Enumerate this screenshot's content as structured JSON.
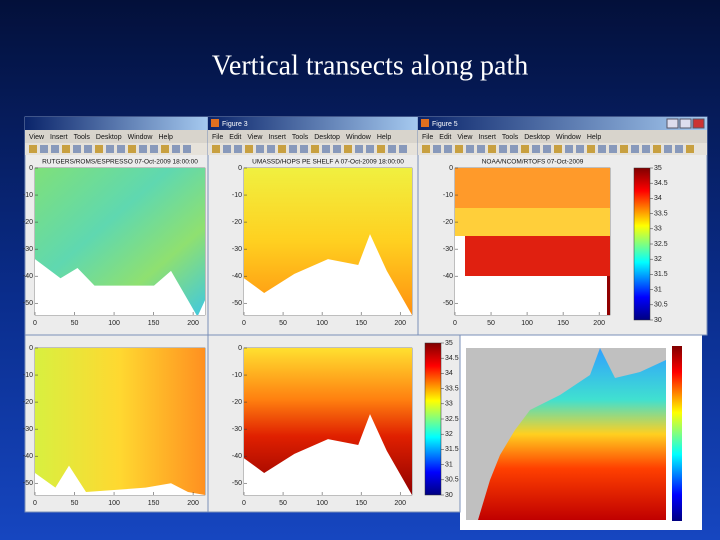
{
  "title": "Vertical transects along path",
  "windows": [
    {
      "menu": [
        "View",
        "Insert",
        "Tools",
        "Desktop",
        "Window",
        "Help"
      ]
    },
    {
      "caption": "Figure 3",
      "menu": [
        "File",
        "Edit",
        "View",
        "Insert",
        "Tools",
        "Desktop",
        "Window",
        "Help"
      ]
    },
    {
      "caption": "Figure 5",
      "menu": [
        "File",
        "Edit",
        "View",
        "Insert",
        "Tools",
        "Desktop",
        "Window",
        "Help"
      ]
    }
  ],
  "panels": [
    {
      "title": "RUTGERS/ROMS/ESPRESSO 07-Oct-2009 18:00:00",
      "xticks": [
        0,
        50,
        100,
        150,
        200
      ],
      "yticks": [
        0,
        -10,
        -20,
        -30,
        -40,
        -50
      ]
    },
    {
      "title": "UMASSD/HOPS PE SHELF A 07-Oct-2009 18:00:00",
      "xticks": [
        0,
        50,
        100,
        150,
        200
      ],
      "yticks": [
        0,
        -10,
        -20,
        -30,
        -40,
        -50
      ]
    },
    {
      "title": "NOAA/NCOM/RTOFS 07-Oct-2009",
      "xticks": [
        0,
        50,
        100,
        150,
        200
      ],
      "yticks": [
        0,
        -10,
        -20,
        -30,
        -40,
        -50
      ],
      "colorbar": [
        35,
        34.5,
        34,
        33.5,
        33,
        32.5,
        32,
        31.5,
        31,
        30.5,
        30
      ]
    },
    {
      "xticks": [
        0,
        50,
        100,
        150,
        200
      ],
      "yticks": [
        0,
        -10,
        -20,
        -30,
        -40,
        -50
      ]
    },
    {
      "xticks": [
        0,
        50,
        100,
        150,
        200
      ],
      "yticks": [
        0,
        -10,
        -20,
        -30,
        -40,
        -50
      ],
      "colorbar": [
        35,
        34.5,
        34,
        33.5,
        33,
        32.5,
        32,
        31.5,
        31,
        30.5,
        30
      ]
    }
  ]
}
